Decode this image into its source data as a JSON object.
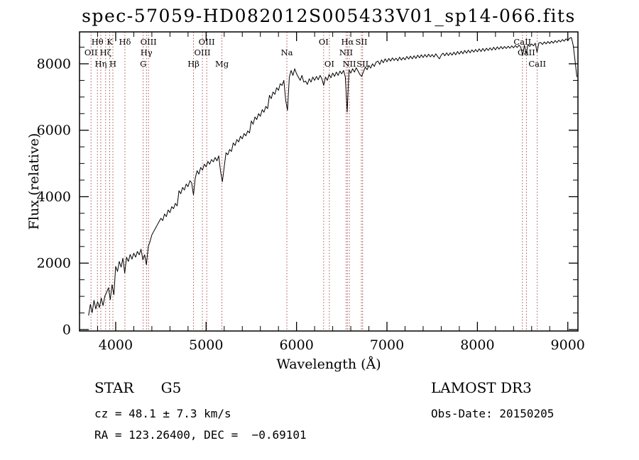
{
  "title": "spec-57059-HD082012S005433V01_sp14-066.fits",
  "axes": {
    "xlabel": "Wavelength (Å)",
    "ylabel": "Flux (relative)"
  },
  "annotations": {
    "class_label": "STAR      G5",
    "survey": "LAMOST DR3",
    "cz": "cz = 48.1 ± 7.3 km/s",
    "obs_date": "Obs-Date: 20150205",
    "ra_dec": "RA = 123.26400, DEC =  −0.69101"
  },
  "colors": {
    "spectrum": "#000000",
    "line_marker": "#9e3a3a",
    "frame": "#000000",
    "background": "#ffffff"
  },
  "chart_data": {
    "type": "line",
    "title": "spec-57059-HD082012S005433V01_sp14-066.fits",
    "xlabel": "Wavelength (Å)",
    "ylabel": "Flux (relative)",
    "xlim": [
      3600,
      9112
    ],
    "ylim": [
      -43,
      8960
    ],
    "x_ticks": [
      4000,
      5000,
      6000,
      7000,
      8000,
      9000
    ],
    "y_ticks": [
      0,
      2000,
      4000,
      6000,
      8000
    ],
    "x_minor_step": 200,
    "y_minor_step": 500,
    "grid": false,
    "legend": false,
    "x_start": 3700,
    "x_step": 20,
    "flux": [
      420,
      760,
      510,
      880,
      620,
      840,
      660,
      950,
      720,
      1010,
      1120,
      1260,
      900,
      1350,
      1050,
      1900,
      1750,
      2050,
      1880,
      2150,
      1700,
      2180,
      2050,
      2260,
      2120,
      2300,
      2180,
      2350,
      2250,
      2420,
      2100,
      2250,
      1950,
      2500,
      2650,
      2850,
      2950,
      3050,
      3150,
      3250,
      3350,
      3280,
      3480,
      3400,
      3600,
      3520,
      3700,
      3640,
      3800,
      3720,
      4180,
      4090,
      4280,
      4200,
      4380,
      4300,
      4480,
      4420,
      4050,
      4560,
      4780,
      4680,
      4880,
      4800,
      4980,
      4900,
      5060,
      4980,
      5120,
      5050,
      5180,
      5080,
      5230,
      4750,
      4450,
      4900,
      5320,
      5260,
      5420,
      5360,
      5620,
      5540,
      5720,
      5650,
      5820,
      5740,
      5900,
      5830,
      5980,
      5920,
      6280,
      6180,
      6400,
      6320,
      6500,
      6420,
      6620,
      6540,
      6720,
      6650,
      7050,
      6950,
      7150,
      7080,
      7280,
      7200,
      7400,
      7350,
      7500,
      6900,
      6600,
      7600,
      7800,
      7650,
      7850,
      7700,
      7600,
      7500,
      7650,
      7450,
      7480,
      7380,
      7550,
      7450,
      7600,
      7500,
      7620,
      7520,
      7650,
      7550,
      7350,
      7600,
      7500,
      7680,
      7580,
      7720,
      7620,
      7750,
      7650,
      7780,
      7700,
      7800,
      7600,
      6550,
      7820,
      7720,
      7850,
      7750,
      7880,
      7780,
      7680,
      7620,
      7760,
      7900,
      7820,
      7950,
      7870,
      8000,
      7920,
      8050,
      8080,
      7980,
      8120,
      8030,
      8150,
      8060,
      8160,
      8080,
      8180,
      8100,
      8170,
      8090,
      8200,
      8110,
      8190,
      8120,
      8220,
      8140,
      8230,
      8150,
      8240,
      8160,
      8260,
      8180,
      8270,
      8190,
      8280,
      8200,
      8290,
      8210,
      8280,
      8200,
      8300,
      8220,
      8150,
      8260,
      8320,
      8240,
      8330,
      8250,
      8330,
      8260,
      8350,
      8270,
      8370,
      8290,
      8380,
      8300,
      8400,
      8320,
      8410,
      8330,
      8420,
      8350,
      8430,
      8360,
      8450,
      8370,
      8460,
      8380,
      8470,
      8400,
      8480,
      8410,
      8500,
      8420,
      8510,
      8440,
      8520,
      8450,
      8520,
      8460,
      8530,
      8470,
      8540,
      8480,
      8550,
      8490,
      8560,
      8500,
      8250,
      8560,
      8300,
      8580,
      8520,
      8600,
      8540,
      8620,
      8350,
      8630,
      8640,
      8580,
      8660,
      8600,
      8670,
      8610,
      8680,
      8620,
      8700,
      8640,
      8710,
      8660,
      8730,
      8680,
      8750,
      8700,
      8770,
      8790,
      8550,
      8100,
      7600
    ],
    "spectral_lines": [
      {
        "wavelength": 3727,
        "label": "OII",
        "row": 1
      },
      {
        "wavelength": 3798,
        "label": "Hθ",
        "row": 0
      },
      {
        "wavelength": 3835,
        "label": "Hη",
        "row": 2
      },
      {
        "wavelength": 3889,
        "label": "Hζ",
        "row": 1
      },
      {
        "wavelength": 3934,
        "label": "K",
        "row": 0
      },
      {
        "wavelength": 3969,
        "label": "H",
        "row": 2
      },
      {
        "wavelength": 4102,
        "label": "Hδ",
        "row": 0
      },
      {
        "wavelength": 4304,
        "label": "G",
        "row": 2
      },
      {
        "wavelength": 4340,
        "label": "Hγ",
        "row": 1
      },
      {
        "wavelength": 4363,
        "label": "OIII",
        "row": 0
      },
      {
        "wavelength": 4861,
        "label": "Hβ",
        "row": 2
      },
      {
        "wavelength": 4959,
        "label": "OIII",
        "row": 1
      },
      {
        "wavelength": 5007,
        "label": "OIII",
        "row": 0
      },
      {
        "wavelength": 5175,
        "label": "Mg",
        "row": 2
      },
      {
        "wavelength": 5893,
        "label": "Na",
        "row": 1
      },
      {
        "wavelength": 6300,
        "label": "OI",
        "row": 0
      },
      {
        "wavelength": 6363,
        "label": "OI",
        "row": 2
      },
      {
        "wavelength": 6548,
        "label": "NII",
        "row": 1
      },
      {
        "wavelength": 6563,
        "label": "Hα",
        "row": 0
      },
      {
        "wavelength": 6584,
        "label": "NII",
        "row": 2
      },
      {
        "wavelength": 6717,
        "label": "SII",
        "row": 0
      },
      {
        "wavelength": 6731,
        "label": "SII",
        "row": 2
      },
      {
        "wavelength": 8498,
        "label": "CaII",
        "row": 0
      },
      {
        "wavelength": 8542,
        "label": "CaII",
        "row": 1
      },
      {
        "wavelength": 8662,
        "label": "CaII",
        "row": 2
      }
    ]
  }
}
